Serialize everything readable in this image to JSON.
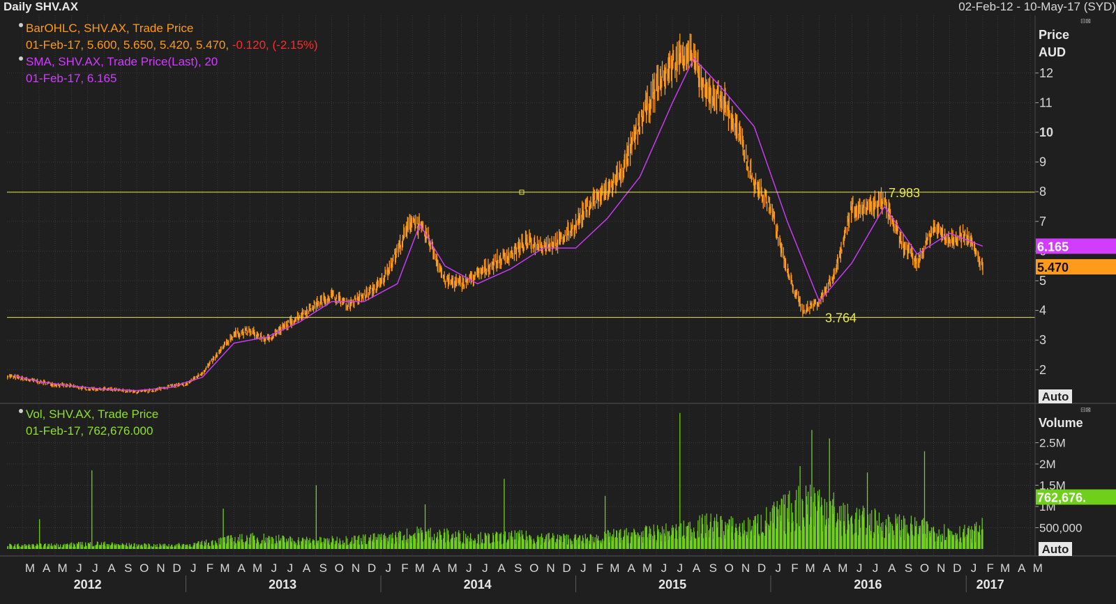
{
  "header": {
    "title": "Daily SHV.AX",
    "range": "02-Feb-12 - 10-May-17 (SYD)"
  },
  "price_panel": {
    "legend_series1": "BarOHLC, SHV.AX, Trade Price",
    "legend_ohlc_prefix": "01-Feb-17, 5.600, 5.650, 5.420, 5.470,",
    "legend_change": "-0.120, (-2.15%)",
    "legend_series2": "SMA, SHV.AX, Trade Price(Last),  20",
    "legend_sma_value": "01-Feb-17, 6.165",
    "axis_title_line1": "Price",
    "axis_title_line2": "AUD",
    "auto_label": "Auto",
    "sma_badge": "6.165",
    "price_badge": "5.470",
    "hline_high_label": "7.983",
    "hline_low_label": "3.764"
  },
  "volume_panel": {
    "legend_series": "Vol, SHV.AX, Trade Price",
    "legend_value": "01-Feb-17, 762,676.000",
    "axis_title": "Volume",
    "auto_label": "Auto",
    "volume_badge": "762,676."
  },
  "colors": {
    "background": "#1f1f1f",
    "grid": "#3a3a3a",
    "price_bars": "#ff9a1a",
    "sma": "#d23cff",
    "volume": "#6fcf1a",
    "hlines": "#e8e84a",
    "change_negative": "#ff2a2a"
  },
  "chart_data": [
    {
      "type": "line",
      "title": "Daily SHV.AX",
      "ylabel": "Price AUD",
      "ylim": [
        1,
        14
      ],
      "yticks": [
        2,
        3,
        4,
        5,
        6,
        7,
        8,
        9,
        10,
        11,
        12
      ],
      "ytick_labels": [
        "2",
        "3",
        "4",
        "5",
        "6",
        "7",
        "8",
        "9",
        "10",
        "11",
        "12"
      ],
      "x_months": [
        "M",
        "A",
        "M",
        "J",
        "J",
        "A",
        "S",
        "O",
        "N",
        "D",
        "J",
        "F",
        "M",
        "A",
        "M",
        "J",
        "J",
        "A",
        "S",
        "O",
        "N",
        "D",
        "J",
        "F",
        "M",
        "A",
        "M",
        "J",
        "J",
        "A",
        "S",
        "O",
        "N",
        "D",
        "J",
        "F",
        "M",
        "A",
        "M",
        "J",
        "J",
        "A",
        "S",
        "O",
        "N",
        "D",
        "J",
        "F",
        "M",
        "A",
        "M",
        "J",
        "J",
        "A",
        "S",
        "O",
        "N",
        "D",
        "J",
        "F",
        "M",
        "A",
        "M"
      ],
      "x_years": [
        "2012",
        "2013",
        "2014",
        "2015",
        "2016",
        "2017"
      ],
      "series": [
        {
          "name": "BarOHLC, SHV.AX, Trade Price",
          "x": [
            "2012-02-01",
            "2012-03-01",
            "2012-04-01",
            "2012-05-01",
            "2012-06-01",
            "2012-07-01",
            "2012-08-01",
            "2012-09-01",
            "2012-10-01",
            "2012-11-01",
            "2012-12-01",
            "2013-01-01",
            "2013-02-01",
            "2013-03-01",
            "2013-04-01",
            "2013-05-01",
            "2013-06-01",
            "2013-07-01",
            "2013-08-01",
            "2013-09-01",
            "2013-10-01",
            "2013-11-01",
            "2013-12-01",
            "2014-01-01",
            "2014-02-01",
            "2014-03-01",
            "2014-04-01",
            "2014-05-01",
            "2014-06-01",
            "2014-07-01",
            "2014-08-01",
            "2014-09-01",
            "2014-10-01",
            "2014-11-01",
            "2014-12-01",
            "2015-01-01",
            "2015-02-01",
            "2015-03-01",
            "2015-04-01",
            "2015-05-01",
            "2015-06-01",
            "2015-07-01",
            "2015-08-01",
            "2015-09-01",
            "2015-10-01",
            "2015-11-01",
            "2015-12-01",
            "2016-01-01",
            "2016-02-01",
            "2016-03-01",
            "2016-04-01",
            "2016-05-01",
            "2016-06-01",
            "2016-07-01",
            "2016-08-01",
            "2016-09-01",
            "2016-10-01",
            "2016-11-01",
            "2016-12-01",
            "2017-01-01",
            "2017-02-01"
          ],
          "values": [
            1.8,
            1.7,
            1.6,
            1.5,
            1.45,
            1.35,
            1.35,
            1.3,
            1.25,
            1.3,
            1.45,
            1.5,
            1.9,
            2.5,
            3.2,
            3.3,
            3.0,
            3.4,
            3.8,
            4.2,
            4.5,
            4.2,
            4.5,
            4.9,
            6.0,
            7.1,
            6.4,
            5.0,
            4.9,
            5.2,
            5.6,
            5.9,
            6.3,
            6.2,
            6.3,
            6.9,
            7.7,
            8.0,
            8.8,
            10.3,
            11.5,
            12.3,
            12.8,
            11.3,
            11.2,
            10.0,
            8.3,
            7.5,
            5.3,
            4.0,
            4.3,
            5.3,
            7.5,
            7.4,
            7.7,
            6.3,
            5.6,
            6.8,
            6.4,
            6.6,
            5.47
          ]
        },
        {
          "name": "SMA, SHV.AX, Trade Price(Last),  20",
          "x": [
            "2012-02-15",
            "2012-04-01",
            "2012-06-01",
            "2012-08-01",
            "2012-10-01",
            "2012-12-01",
            "2013-02-01",
            "2013-04-01",
            "2013-06-01",
            "2013-08-01",
            "2013-10-01",
            "2013-12-01",
            "2014-02-01",
            "2014-03-15",
            "2014-05-01",
            "2014-07-01",
            "2014-09-01",
            "2014-11-01",
            "2015-01-01",
            "2015-03-01",
            "2015-05-01",
            "2015-07-01",
            "2015-08-10",
            "2015-10-01",
            "2015-12-01",
            "2016-02-01",
            "2016-04-01",
            "2016-06-01",
            "2016-08-01",
            "2016-10-01",
            "2016-12-01",
            "2017-02-01"
          ],
          "values": [
            1.8,
            1.6,
            1.45,
            1.35,
            1.3,
            1.4,
            1.75,
            2.9,
            3.1,
            3.6,
            4.3,
            4.3,
            4.9,
            6.9,
            5.5,
            4.9,
            5.4,
            6.1,
            6.1,
            7.1,
            8.5,
            11.0,
            12.5,
            11.5,
            10.2,
            7.0,
            4.3,
            5.6,
            7.5,
            5.9,
            6.6,
            6.165
          ]
        }
      ],
      "hlines": [
        7.983,
        3.764
      ],
      "last_values": {
        "sma": 6.165,
        "price": 5.47
      }
    },
    {
      "type": "bar",
      "title": "Vol, SHV.AX, Trade Price",
      "ylabel": "Volume",
      "ylim": [
        0,
        3000000
      ],
      "yticks": [
        500000,
        1000000,
        1500000,
        2000000,
        2500000
      ],
      "ytick_labels": [
        "500,000",
        "1M",
        "1.5M",
        "2M",
        "2.5M"
      ],
      "series": [
        {
          "name": "Vol, SHV.AX, Trade Price",
          "x": [
            "2012-03",
            "2012-05",
            "2012-07",
            "2012-09",
            "2012-11",
            "2013-01",
            "2013-03",
            "2013-05",
            "2013-07",
            "2013-09",
            "2013-11",
            "2014-01",
            "2014-03",
            "2014-05",
            "2014-07",
            "2014-09",
            "2014-11",
            "2015-01",
            "2015-03",
            "2015-05",
            "2015-07",
            "2015-08",
            "2015-09",
            "2015-11",
            "2016-01",
            "2016-03",
            "2016-04",
            "2016-05",
            "2016-07",
            "2016-09",
            "2016-11",
            "2017-01",
            "2017-02"
          ],
          "values": [
            80000,
            90000,
            120000,
            90000,
            80000,
            100000,
            200000,
            250000,
            200000,
            180000,
            220000,
            250000,
            350000,
            300000,
            250000,
            280000,
            250000,
            220000,
            300000,
            350000,
            400000,
            500000,
            550000,
            450000,
            750000,
            1100000,
            1000000,
            700000,
            600000,
            500000,
            400000,
            350000,
            762676
          ]
        }
      ],
      "spikes": [
        {
          "x": "2012-04-02",
          "value": 700000
        },
        {
          "x": "2012-07-09",
          "value": 1850000
        },
        {
          "x": "2013-03-12",
          "value": 950000
        },
        {
          "x": "2013-09-02",
          "value": 1500000
        },
        {
          "x": "2014-03-25",
          "value": 1050000
        },
        {
          "x": "2014-08-20",
          "value": 1650000
        },
        {
          "x": "2015-02-25",
          "value": 1250000
        },
        {
          "x": "2015-07-15",
          "value": 3200000
        },
        {
          "x": "2016-02-25",
          "value": 1950000
        },
        {
          "x": "2016-03-18",
          "value": 2800000
        },
        {
          "x": "2016-04-20",
          "value": 2600000
        },
        {
          "x": "2016-06-30",
          "value": 1800000
        },
        {
          "x": "2016-10-15",
          "value": 2300000
        }
      ],
      "last_value": 762676
    }
  ]
}
